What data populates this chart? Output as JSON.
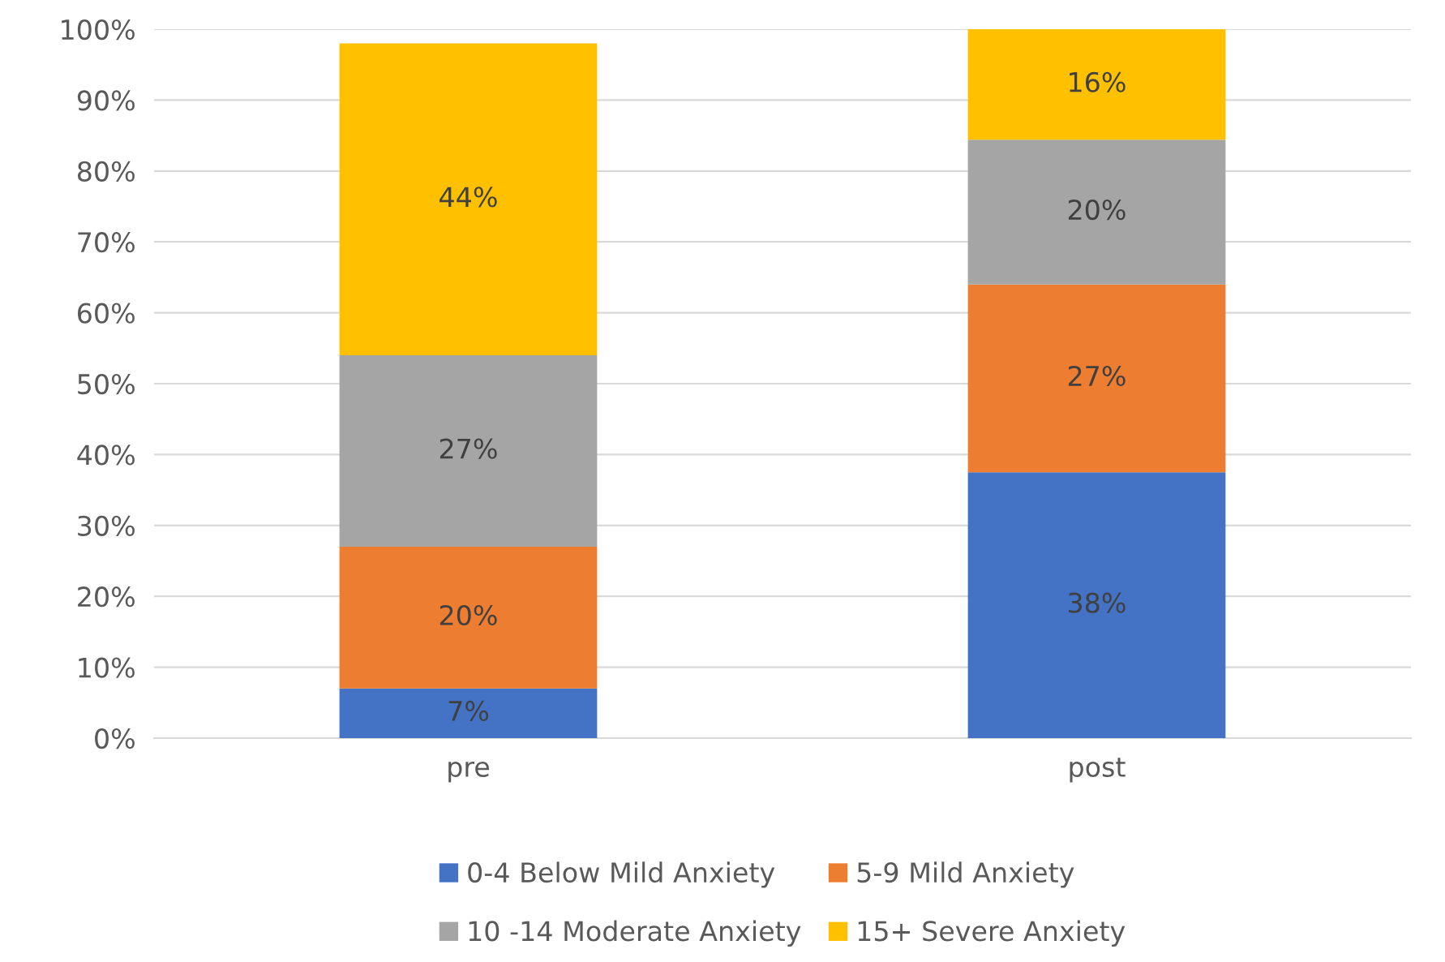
{
  "chart_data": {
    "type": "bar",
    "stacked": true,
    "categories": [
      "pre",
      "post"
    ],
    "series": [
      {
        "name": "0-4 Below Mild Anxiety",
        "color": "#4472c4",
        "values": [
          7,
          37.5
        ],
        "value_labels": [
          "7%",
          "38%"
        ]
      },
      {
        "name": "5-9 Mild Anxiety",
        "color": "#ed7d31",
        "values": [
          20,
          26.5
        ],
        "value_labels": [
          "20%",
          "27%"
        ]
      },
      {
        "name": "10 -14 Moderate Anxiety",
        "color": "#a5a5a5",
        "values": [
          27,
          20.4
        ],
        "value_labels": [
          "27%",
          "20%"
        ]
      },
      {
        "name": "15+ Severe Anxiety",
        "color": "#ffc000",
        "values": [
          44,
          15.6
        ],
        "value_labels": [
          "44%",
          "16%"
        ]
      }
    ],
    "ylim": [
      0,
      100
    ],
    "yticks": [
      {
        "value": 0,
        "label": "0%"
      },
      {
        "value": 10,
        "label": "10%"
      },
      {
        "value": 20,
        "label": "20%"
      },
      {
        "value": 30,
        "label": "30%"
      },
      {
        "value": 40,
        "label": "40%"
      },
      {
        "value": 50,
        "label": "50%"
      },
      {
        "value": 60,
        "label": "60%"
      },
      {
        "value": 70,
        "label": "70%"
      },
      {
        "value": 80,
        "label": "80%"
      },
      {
        "value": 90,
        "label": "90%"
      },
      {
        "value": 100,
        "label": "100%"
      }
    ],
    "grid": "y",
    "legend": "bottom"
  }
}
